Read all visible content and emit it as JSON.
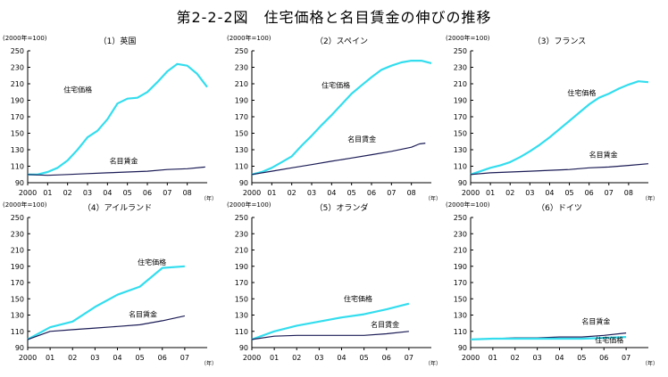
{
  "figure_title": "第2-2-2図　住宅価格と名目賃金の伸びの推移",
  "colors": {
    "house": "#33ddee",
    "wage": "#1a1a55",
    "axis": "#000000"
  },
  "chart_data": [
    {
      "type": "line",
      "title": "（1）英国",
      "unit_label": "(2000年=100)",
      "x_unit": "（年）",
      "x_ticks": [
        "2000",
        "01",
        "02",
        "03",
        "04",
        "05",
        "06",
        "07",
        "08"
      ],
      "x_range": [
        2000,
        2009.0
      ],
      "ylim": [
        90,
        250
      ],
      "y_ticks": [
        90,
        110,
        130,
        150,
        170,
        190,
        210,
        230,
        250
      ],
      "series": [
        {
          "name": "住宅価格",
          "color_key": "house",
          "x": [
            2000,
            2000.5,
            2001,
            2001.5,
            2002,
            2002.5,
            2003,
            2003.5,
            2004,
            2004.5,
            2005,
            2005.5,
            2006,
            2006.5,
            2007,
            2007.5,
            2008,
            2008.5,
            2009.0
          ],
          "y": [
            100,
            100,
            103,
            108,
            117,
            130,
            145,
            153,
            167,
            186,
            192,
            193,
            200,
            212,
            225,
            234,
            232,
            222,
            206
          ]
        },
        {
          "name": "名目賃金",
          "color_key": "wage",
          "x": [
            2000,
            2001,
            2002,
            2003,
            2004,
            2005,
            2006,
            2007,
            2008,
            2008.9
          ],
          "y": [
            100,
            99,
            100,
            101,
            102,
            103,
            104,
            106,
            107,
            109
          ]
        }
      ],
      "labels": [
        {
          "series": "住宅価格",
          "x": 2001.8,
          "y": 200
        },
        {
          "series": "名目賃金",
          "x": 2004.1,
          "y": 113
        }
      ]
    },
    {
      "type": "line",
      "title": "（2）スペイン",
      "unit_label": "(2000年=100)",
      "x_unit": "（年）",
      "x_ticks": [
        "2000",
        "01",
        "02",
        "03",
        "04",
        "05",
        "06",
        "07",
        "08"
      ],
      "x_range": [
        2000,
        2009.0
      ],
      "ylim": [
        90,
        250
      ],
      "y_ticks": [
        90,
        110,
        130,
        150,
        170,
        190,
        210,
        230,
        250
      ],
      "series": [
        {
          "name": "住宅価格",
          "color_key": "house",
          "x": [
            2000,
            2000.5,
            2001,
            2001.5,
            2002,
            2002.5,
            2003,
            2003.5,
            2004,
            2004.5,
            2005,
            2005.5,
            2006,
            2006.5,
            2007,
            2007.5,
            2008,
            2008.5,
            2009.0
          ],
          "y": [
            100,
            103,
            108,
            115,
            122,
            135,
            147,
            160,
            172,
            185,
            198,
            208,
            218,
            227,
            232,
            236,
            238,
            238,
            235
          ]
        },
        {
          "name": "名目賃金",
          "color_key": "wage",
          "x": [
            2000,
            2001,
            2002,
            2003,
            2004,
            2005,
            2006,
            2007,
            2008,
            2008.4,
            2008.7
          ],
          "y": [
            100,
            104,
            108,
            112,
            116,
            120,
            124,
            128,
            133,
            137,
            138
          ]
        }
      ],
      "labels": [
        {
          "series": "住宅価格",
          "x": 2003.5,
          "y": 205
        },
        {
          "series": "名目賃金",
          "x": 2004.8,
          "y": 140
        }
      ]
    },
    {
      "type": "line",
      "title": "（3）フランス",
      "unit_label": "(2000年=100)",
      "x_unit": "（年）",
      "x_ticks": [
        "2000",
        "01",
        "02",
        "03",
        "04",
        "05",
        "06",
        "07",
        "08"
      ],
      "x_range": [
        2000,
        2009.0
      ],
      "ylim": [
        90,
        250
      ],
      "y_ticks": [
        90,
        110,
        130,
        150,
        170,
        190,
        210,
        230,
        250
      ],
      "series": [
        {
          "name": "住宅価格",
          "color_key": "house",
          "x": [
            2000,
            2000.5,
            2001,
            2001.5,
            2002,
            2002.5,
            2003,
            2003.5,
            2004,
            2004.5,
            2005,
            2005.5,
            2006,
            2006.5,
            2007,
            2007.5,
            2008,
            2008.5,
            2009.0
          ],
          "y": [
            100,
            104,
            108,
            111,
            115,
            121,
            128,
            136,
            145,
            155,
            165,
            175,
            185,
            193,
            198,
            204,
            209,
            213,
            212
          ]
        },
        {
          "name": "名目賃金",
          "color_key": "wage",
          "x": [
            2000,
            2001,
            2002,
            2003,
            2004,
            2005,
            2006,
            2007,
            2008,
            2009.0
          ],
          "y": [
            100,
            102,
            103,
            104,
            105,
            106,
            108,
            109,
            111,
            113
          ]
        }
      ],
      "labels": [
        {
          "series": "住宅価格",
          "x": 2004.9,
          "y": 196
        },
        {
          "series": "名目賃金",
          "x": 2006.0,
          "y": 121
        }
      ]
    },
    {
      "type": "line",
      "title": "（4）アイルランド",
      "unit_label": "(2000年=100)",
      "x_unit": "（年）",
      "x_ticks": [
        "2000",
        "01",
        "02",
        "03",
        "04",
        "05",
        "06",
        "07"
      ],
      "x_range": [
        2000,
        2008.0
      ],
      "ylim": [
        90,
        250
      ],
      "y_ticks": [
        90,
        110,
        130,
        150,
        170,
        190,
        210,
        230,
        250
      ],
      "series": [
        {
          "name": "住宅価格",
          "color_key": "house",
          "x": [
            2000,
            2001,
            2002,
            2003,
            2004,
            2005,
            2006,
            2007
          ],
          "y": [
            100,
            115,
            122,
            140,
            155,
            165,
            188,
            190
          ]
        },
        {
          "name": "名目賃金",
          "color_key": "wage",
          "x": [
            2000,
            2001,
            2002,
            2003,
            2004,
            2005,
            2006,
            2007
          ],
          "y": [
            100,
            110,
            112,
            114,
            116,
            118,
            123,
            129
          ]
        }
      ],
      "labels": [
        {
          "series": "住宅価格",
          "x": 2004.9,
          "y": 192
        },
        {
          "series": "名目賃金",
          "x": 2004.5,
          "y": 128
        }
      ]
    },
    {
      "type": "line",
      "title": "（5）オランダ",
      "unit_label": "(2000年=100)",
      "x_unit": "（年）",
      "x_ticks": [
        "2000",
        "01",
        "02",
        "03",
        "04",
        "05",
        "06",
        "07"
      ],
      "x_range": [
        2000,
        2008.0
      ],
      "ylim": [
        90,
        250
      ],
      "y_ticks": [
        90,
        110,
        130,
        150,
        170,
        190,
        210,
        230,
        250
      ],
      "series": [
        {
          "name": "住宅価格",
          "color_key": "house",
          "x": [
            2000,
            2001,
            2002,
            2003,
            2004,
            2005,
            2006,
            2007
          ],
          "y": [
            100,
            110,
            117,
            122,
            127,
            131,
            137,
            144
          ]
        },
        {
          "name": "名目賃金",
          "color_key": "wage",
          "x": [
            2000,
            2001,
            2002,
            2003,
            2004,
            2005,
            2006,
            2007
          ],
          "y": [
            100,
            104,
            105,
            105,
            105,
            105,
            107,
            110
          ]
        }
      ],
      "labels": [
        {
          "series": "住宅価格",
          "x": 2004.1,
          "y": 147
        },
        {
          "series": "名目賃金",
          "x": 2005.3,
          "y": 115
        }
      ]
    },
    {
      "type": "line",
      "title": "（6）ドイツ",
      "unit_label": "(2000年=100)",
      "x_unit": "（年）",
      "x_ticks": [
        "2000",
        "01",
        "02",
        "03",
        "04",
        "05",
        "06",
        "07"
      ],
      "x_range": [
        2000,
        2008.0
      ],
      "ylim": [
        90,
        250
      ],
      "y_ticks": [
        90,
        110,
        130,
        150,
        170,
        190,
        210,
        230,
        250
      ],
      "series": [
        {
          "name": "名目賃金",
          "color_key": "wage",
          "x": [
            2000,
            2001,
            2002,
            2003,
            2004,
            2005,
            2006,
            2007
          ],
          "y": [
            100,
            101,
            102,
            102,
            103,
            103,
            105,
            108
          ]
        },
        {
          "name": "住宅価格",
          "color_key": "house",
          "x": [
            2000,
            2001,
            2002,
            2003,
            2004,
            2005,
            2006,
            2007
          ],
          "y": [
            100,
            101,
            101,
            101,
            101,
            101,
            102,
            103
          ]
        }
      ],
      "labels": [
        {
          "series": "名目賃金",
          "x": 2005.0,
          "y": 119
        },
        {
          "series": "住宅価格",
          "x": 2005.6,
          "y": 96
        }
      ]
    }
  ]
}
